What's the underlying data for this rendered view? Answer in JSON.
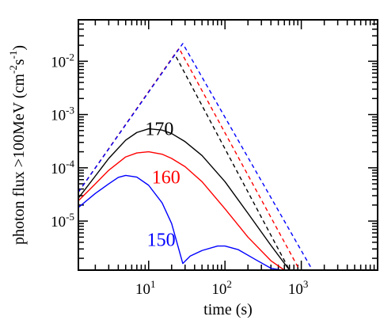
{
  "chart_data": {
    "type": "line",
    "title": "",
    "xlabel": "time (s)",
    "ylabel": "photon flux >100MeV (cm",
    "ylabel_exp1": "-2",
    "ylabel_mid": "s",
    "ylabel_exp2": "-1",
    "ylabel_end": ")",
    "xscale": "log",
    "yscale": "log",
    "xlim": [
      1.2,
      10000
    ],
    "ylim": [
      1.2e-06,
      0.06
    ],
    "grid": false,
    "legend": "none",
    "x_ticks": [
      {
        "value": 10,
        "base": "10",
        "exp": "1"
      },
      {
        "value": 100,
        "base": "10",
        "exp": "2"
      },
      {
        "value": 1000,
        "base": "10",
        "exp": "3"
      }
    ],
    "y_ticks": [
      {
        "value": 1e-05,
        "base": "10",
        "exp": "-5"
      },
      {
        "value": 0.0001,
        "base": "10",
        "exp": "-4"
      },
      {
        "value": 0.001,
        "base": "10",
        "exp": "-3"
      },
      {
        "value": 0.01,
        "base": "10",
        "exp": "-2"
      }
    ],
    "series": [
      {
        "label": "170",
        "color": "#000000",
        "style": "solid",
        "x": [
          1.2,
          2,
          3,
          5,
          7,
          10,
          15,
          20,
          30,
          50,
          100,
          200,
          400,
          700
        ],
        "y": [
          2.7e-05,
          7e-05,
          0.00015,
          0.00033,
          0.00046,
          0.00054,
          0.00051,
          0.00044,
          0.00031,
          0.00017,
          5.5e-05,
          1.4e-05,
          3.5e-06,
          1.2e-06
        ]
      },
      {
        "label": "160",
        "color": "#ff0000",
        "style": "solid",
        "x": [
          1.2,
          2,
          3,
          5,
          7,
          10,
          15,
          20,
          30,
          50,
          100,
          200,
          400,
          600
        ],
        "y": [
          2.4e-05,
          5e-05,
          9e-05,
          0.00016,
          0.00019,
          0.0002,
          0.00018,
          0.00015,
          0.000105,
          5.5e-05,
          1.7e-05,
          5e-06,
          1.8e-06,
          1.2e-06
        ]
      },
      {
        "label": "150",
        "color": "#0000ff",
        "style": "solid",
        "x": [
          1.2,
          2,
          3,
          4,
          5,
          7,
          10,
          15,
          20,
          28,
          35,
          50,
          80,
          100,
          150,
          250,
          400,
          550
        ],
        "y": [
          1.8e-05,
          3.3e-05,
          5e-05,
          6.6e-05,
          7.2e-05,
          6.7e-05,
          4.7e-05,
          2.2e-05,
          9e-06,
          1.6e-06,
          2.2e-06,
          2.8e-06,
          3.4e-06,
          3.4e-06,
          2.9e-06,
          1.9e-06,
          1.3e-06,
          1.2e-06
        ]
      },
      {
        "label": "",
        "color": "#000000",
        "style": "dashed",
        "x": [
          1.2,
          22,
          700
        ],
        "y": [
          3.5e-05,
          0.0135,
          1.2e-06
        ]
      },
      {
        "label": "",
        "color": "#ff0000",
        "style": "dashed",
        "x": [
          1.2,
          25,
          950
        ],
        "y": [
          3.5e-05,
          0.0175,
          1.2e-06
        ]
      },
      {
        "label": "",
        "color": "#0000ff",
        "style": "dashed",
        "x": [
          1.2,
          28,
          1400
        ],
        "y": [
          3.5e-05,
          0.0215,
          1.2e-06
        ]
      }
    ],
    "annotations": [
      {
        "text": "170",
        "x": 9,
        "y": 0.00054,
        "color": "#000000"
      },
      {
        "text": "160",
        "x": 11,
        "y": 6.7e-05,
        "color": "#ff0000"
      },
      {
        "text": "150",
        "x": 9.5,
        "y": 4.5e-06,
        "color": "#0000ff"
      }
    ]
  }
}
